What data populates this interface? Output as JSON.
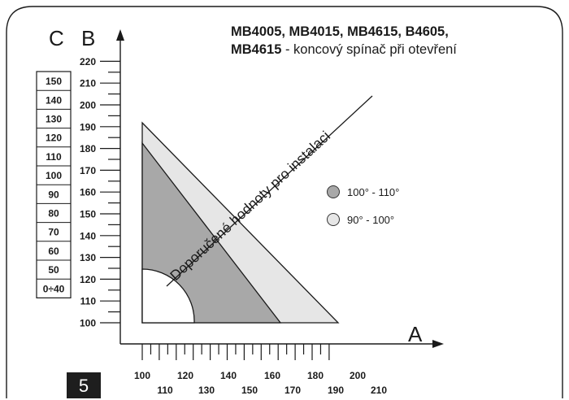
{
  "title": {
    "models": "MB4005, MB4015, MB4615, B4605,",
    "model_last": "MB4615",
    "subtitle": " - koncový  spínač při otevření"
  },
  "axes": {
    "c_label": "C",
    "b_label": "B",
    "a_label": "A"
  },
  "diagonal_label": "Doporučené hodnoty pro instalaci",
  "legend": [
    {
      "label": "100° - 110°",
      "color": "#a8a8a8"
    },
    {
      "label": "90° - 100°",
      "color": "#e6e6e6"
    }
  ],
  "page_number": "5",
  "chart_data": {
    "type": "diagram",
    "b_ticks": [
      "100",
      "110",
      "120",
      "130",
      "140",
      "150",
      "160",
      "170",
      "180",
      "190",
      "200",
      "210",
      "220"
    ],
    "c_table": [
      "150",
      "140",
      "130",
      "120",
      "110",
      "100",
      "90",
      "80",
      "70",
      "60",
      "50",
      "0÷40"
    ],
    "a_ticks_top": [
      "100",
      "120",
      "140",
      "160",
      "180",
      "200"
    ],
    "a_ticks_bottom": [
      "110",
      "130",
      "150",
      "170",
      "190",
      "210"
    ],
    "colors": {
      "dark_zone": "#a8a8a8",
      "light_zone": "#e6e6e6",
      "line": "#1a1a1a"
    }
  }
}
